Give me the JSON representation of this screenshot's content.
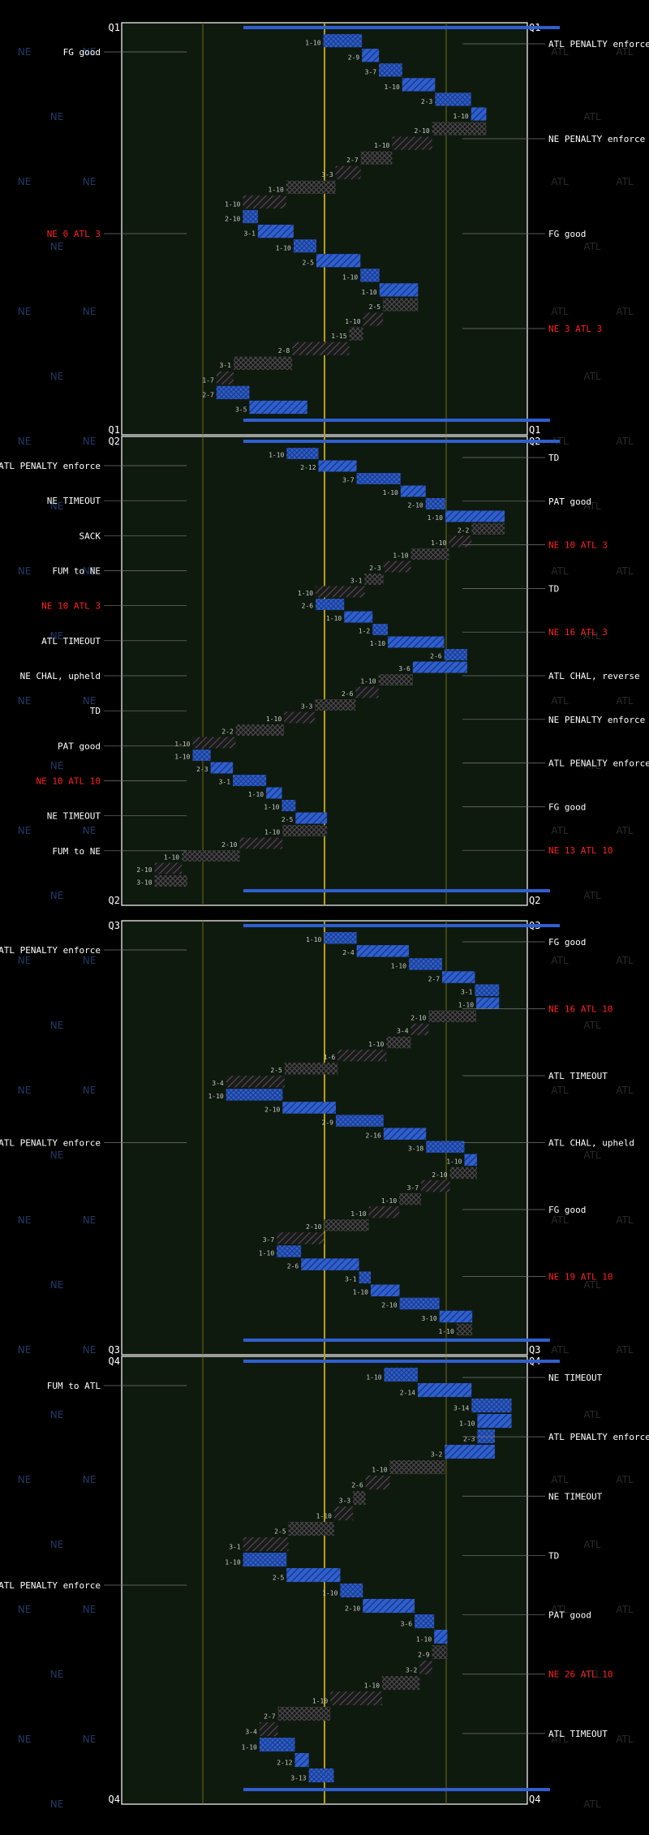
{
  "chart_data": {
    "type": "drive-chart",
    "colors": {
      "background": "#000000",
      "field": "#0f1a0f",
      "border": "#ffffff",
      "midfield": "#b8a000",
      "yard_line": "#6f6c12",
      "home_team": "#2f5fcf",
      "away_team": "#111111",
      "score": "#ff2020",
      "watermark": "#223a66"
    },
    "teams": {
      "left": "NE",
      "right": "ATL"
    },
    "quarters": [
      {
        "label": "Q1",
        "annotations_right": [
          {
            "text": "ATL PENALTY enforce"
          },
          {
            "text": "NE PENALTY enforce"
          },
          {
            "text": "FG good"
          },
          {
            "text": "NE 3 ATL 3",
            "score": true
          }
        ],
        "annotations_left": [
          {
            "text": "FG good"
          },
          {
            "text": "NE 0 ATL 3",
            "score": true
          }
        ],
        "downs": [
          "1-10",
          "2-9",
          "3-7",
          "1-10",
          "2-3",
          "1-10",
          "2-10",
          "1-10",
          "2-7",
          "3-3",
          "1-10",
          "1-10",
          "2-10",
          "3-1",
          "1-10",
          "2-5",
          "1-10",
          "1-10",
          "2-5",
          "1-10",
          "1-15",
          "2-8",
          "3-1",
          "1-7",
          "2-7",
          "3-5"
        ]
      },
      {
        "label": "Q2",
        "annotations_right": [
          {
            "text": "TD"
          },
          {
            "text": "PAT good"
          },
          {
            "text": "NE 10 ATL 3",
            "score": true
          },
          {
            "text": "TD"
          },
          {
            "text": "NE 16 ATL 3",
            "score": true
          },
          {
            "text": "ATL CHAL, reverse"
          },
          {
            "text": "NE PENALTY enforce"
          },
          {
            "text": "ATL PENALTY enforce"
          },
          {
            "text": "FG good"
          },
          {
            "text": "NE 13 ATL 10",
            "score": true
          }
        ],
        "annotations_left": [
          {
            "text": "ATL PENALTY enforce"
          },
          {
            "text": "NE TIMEOUT"
          },
          {
            "text": "SACK"
          },
          {
            "text": "FUM to NE"
          },
          {
            "text": "NE 10 ATL 3",
            "score": true
          },
          {
            "text": "ATL TIMEOUT"
          },
          {
            "text": "NE CHAL, upheld"
          },
          {
            "text": "TD"
          },
          {
            "text": "PAT good"
          },
          {
            "text": "NE 10 ATL 10",
            "score": true
          },
          {
            "text": "NE TIMEOUT"
          },
          {
            "text": "FUM to NE"
          }
        ],
        "downs": [
          "1-10",
          "2-12",
          "3-7",
          "1-10",
          "2-10",
          "1-10",
          "2-2",
          "1-10",
          "1-10",
          "2-3",
          "3-1",
          "1-10",
          "2-6",
          "1-10",
          "1-2",
          "1-10",
          "2-6",
          "3-6",
          "1-10",
          "2-6",
          "3-3",
          "1-10",
          "2-2",
          "1-10",
          "1-10",
          "2-3",
          "3-1",
          "1-10",
          "1-10",
          "2-5",
          "1-10",
          "2-10",
          "1-10",
          "2-10",
          "3-10"
        ]
      },
      {
        "label": "Q3",
        "annotations_right": [
          {
            "text": "FG good"
          },
          {
            "text": "NE 16 ATL 10",
            "score": true
          },
          {
            "text": "ATL TIMEOUT"
          },
          {
            "text": "ATL CHAL, upheld"
          },
          {
            "text": "FG good"
          },
          {
            "text": "NE 19 ATL 10",
            "score": true
          }
        ],
        "annotations_left": [
          {
            "text": "ATL PENALTY enforce"
          },
          {
            "text": "ATL PENALTY enforce"
          }
        ],
        "downs": [
          "1-10",
          "2-4",
          "1-10",
          "2-7",
          "3-1",
          "1-10",
          "2-10",
          "3-4",
          "1-10",
          "1-6",
          "2-5",
          "3-4",
          "1-10",
          "2-10",
          "2-9",
          "2-16",
          "3-18",
          "1-10",
          "2-10",
          "3-7",
          "1-10",
          "1-10",
          "2-10",
          "3-7",
          "1-10",
          "2-6",
          "3-1",
          "1-10",
          "2-10",
          "3-10",
          "1-10"
        ]
      },
      {
        "label": "Q4",
        "annotations_right": [
          {
            "text": "NE TIMEOUT"
          },
          {
            "text": "ATL PENALTY enforce"
          },
          {
            "text": "NE TIMEOUT"
          },
          {
            "text": "TD"
          },
          {
            "text": "PAT good"
          },
          {
            "text": "NE 26 ATL 10",
            "score": true
          },
          {
            "text": "ATL TIMEOUT"
          }
        ],
        "annotations_left": [
          {
            "text": "FUM to ATL"
          },
          {
            "text": "ATL PENALTY enforce"
          }
        ],
        "downs": [
          "1-10",
          "2-14",
          "3-14",
          "1-10",
          "2-3",
          "3-2",
          "1-10",
          "2-6",
          "3-3",
          "1-10",
          "2-5",
          "3-1",
          "1-10",
          "2-5",
          "1-10",
          "2-10",
          "3-6",
          "1-10",
          "2-9",
          "3-2",
          "1-10",
          "1-10",
          "2-7",
          "3-4",
          "1-10",
          "2-12",
          "3-13"
        ]
      }
    ]
  }
}
